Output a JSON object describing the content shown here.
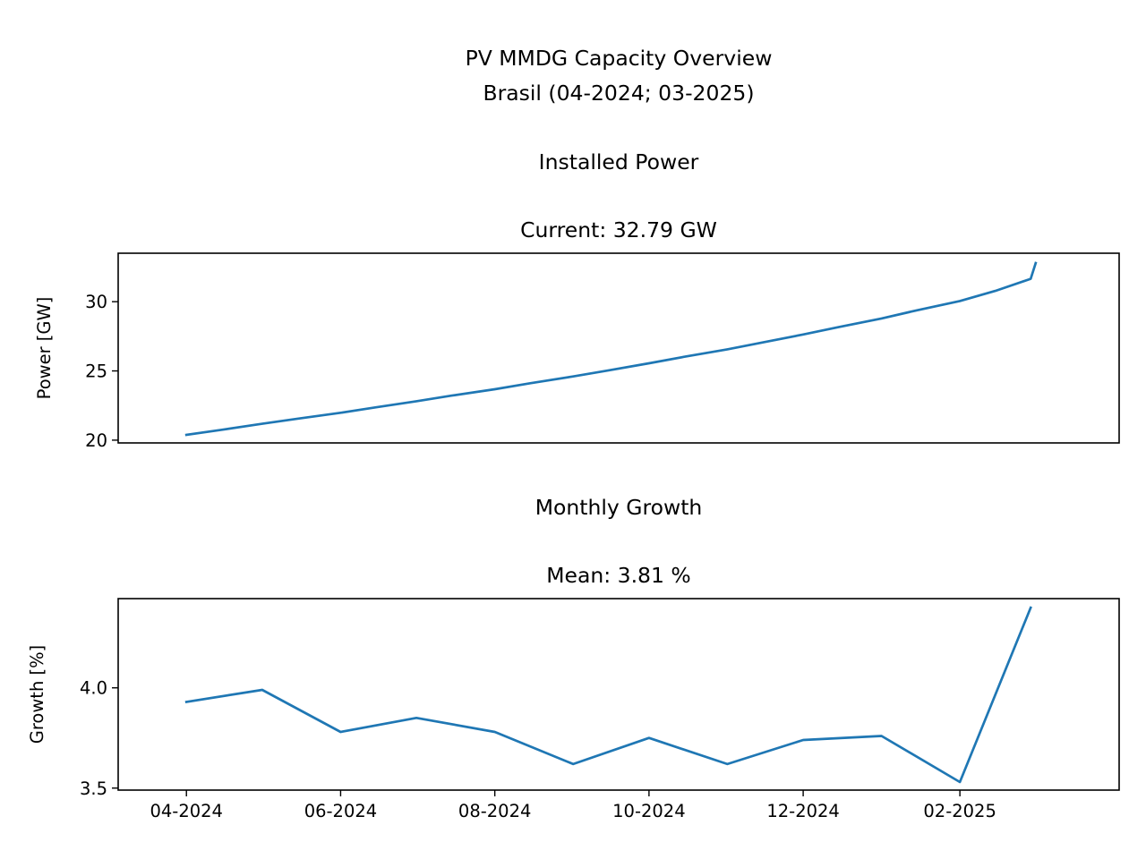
{
  "figure": {
    "suptitle_line1": "PV MMDG Capacity Overview",
    "suptitle_line2": "Brasil (04-2024; 03-2025)"
  },
  "colors": {
    "line": "#1f77b4",
    "axes": "#000000",
    "background": "#ffffff"
  },
  "chart_data": [
    {
      "type": "line",
      "title": "Installed Power",
      "subtitle": "Current: 32.79 GW",
      "xlabel": "",
      "ylabel": "Power [GW]",
      "xlim": [
        "2024-03-05",
        "2025-04-05"
      ],
      "ylim": [
        19.8,
        33.5
      ],
      "yticks": [
        20,
        25,
        30
      ],
      "x_tick_labels_visible": false,
      "grid": false,
      "series": [
        {
          "x": [
            "2024-04-01",
            "2024-04-15",
            "2024-05-01",
            "2024-05-15",
            "2024-06-01",
            "2024-06-15",
            "2024-07-01",
            "2024-07-15",
            "2024-08-01",
            "2024-08-15",
            "2024-09-01",
            "2024-09-15",
            "2024-10-01",
            "2024-10-15",
            "2024-11-01",
            "2024-11-15",
            "2024-12-01",
            "2024-12-15",
            "2025-01-01",
            "2025-01-15",
            "2025-02-01",
            "2025-02-15",
            "2025-03-01",
            "2025-03-03"
          ],
          "values": [
            20.38,
            20.75,
            21.18,
            21.55,
            21.98,
            22.37,
            22.81,
            23.22,
            23.68,
            24.11,
            24.6,
            25.04,
            25.55,
            26.02,
            26.56,
            27.06,
            27.63,
            28.16,
            28.79,
            29.38,
            30.05,
            30.78,
            31.65,
            32.79
          ]
        }
      ]
    },
    {
      "type": "line",
      "title": "Monthly Growth",
      "subtitle": "Mean: 3.81 %",
      "xlabel": "",
      "ylabel": "Growth [%]",
      "xlim": [
        "2024-03-05",
        "2025-04-05"
      ],
      "ylim": [
        3.49,
        4.445
      ],
      "yticks": [
        3.5,
        4.0
      ],
      "xticks": [
        "2024-04-01",
        "2024-06-01",
        "2024-08-01",
        "2024-10-01",
        "2024-12-01",
        "2025-02-01"
      ],
      "xtick_labels": [
        "04-2024",
        "06-2024",
        "08-2024",
        "10-2024",
        "12-2024",
        "02-2025"
      ],
      "grid": false,
      "series": [
        {
          "x": [
            "2024-04-01",
            "2024-05-01",
            "2024-06-01",
            "2024-07-01",
            "2024-08-01",
            "2024-09-01",
            "2024-10-01",
            "2024-11-01",
            "2024-12-01",
            "2025-01-01",
            "2025-02-01",
            "2025-03-01"
          ],
          "values": [
            3.93,
            3.99,
            3.78,
            3.85,
            3.78,
            3.62,
            3.75,
            3.62,
            3.74,
            3.76,
            3.53,
            4.4
          ]
        }
      ]
    }
  ]
}
